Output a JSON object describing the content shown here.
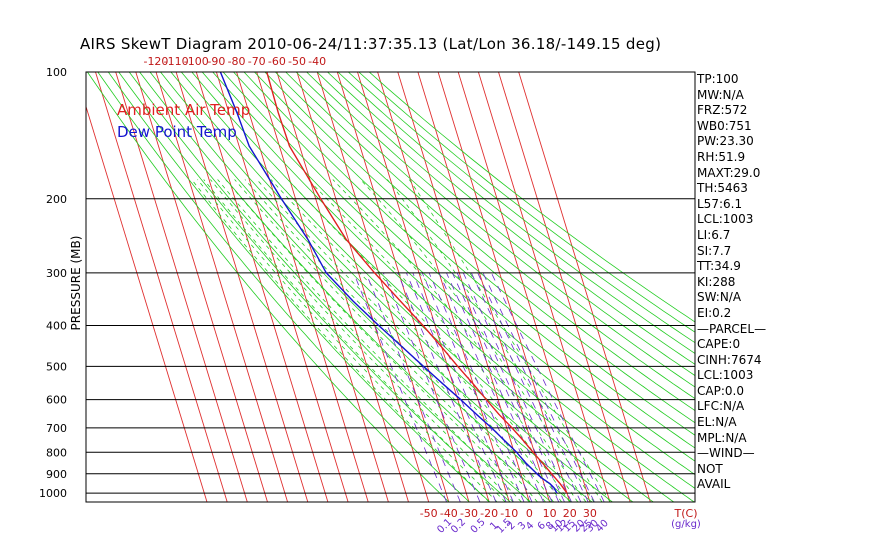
{
  "title": "AIRS SkewT Diagram 2010-06-24/11:37:35.13 (Lat/Lon 36.18/-149.15 deg)",
  "colors": {
    "air_temp": "#e02020",
    "dew_point": "#1414d0",
    "isotherm": "#e03030",
    "dry_adiabat": "#22cc22",
    "moist_adiabat": "#22cc22",
    "mixing_ratio": "#6a2acc",
    "isobar": "#000000"
  },
  "chart_data": {
    "type": "line",
    "title": "AIRS SkewT Diagram 2010-06-24/11:37:35.13 (Lat/Lon 36.18/-149.15 deg)",
    "ylabel": "PRESSURE (MB)",
    "xlabel": "T(C)",
    "y_scale": "log",
    "y_range_mb": [
      1050,
      100
    ],
    "pressure_ticks": [
      "100",
      "200",
      "300",
      "400",
      "500",
      "600",
      "700",
      "800",
      "900",
      "1000"
    ],
    "bottom_temp_ticks": [
      "-50",
      "-40",
      "-30",
      "-20",
      "-10",
      "0",
      "10",
      "20",
      "30"
    ],
    "bottom_axis_unit": "T(C)",
    "top_temp_ticks": [
      "-120",
      "-110",
      "-100",
      "-90",
      "-80",
      "-70",
      "-60",
      "-50",
      "-40"
    ],
    "mixing_ratio_labels": [
      "0.1",
      "0.2",
      "0.5",
      "1",
      "1.5",
      "2",
      "3",
      "4",
      "6",
      "8",
      "10",
      "12",
      "15",
      "20",
      "25",
      "30",
      "40"
    ],
    "mixing_ratio_unit": "(g/kg)",
    "legend": [
      "Ambient Air Temp",
      "Dew Point Temp"
    ],
    "legend_placement": "top-left",
    "series": [
      {
        "name": "Ambient Air Temp",
        "points": [
          {
            "p": 1000,
            "t": 20.0
          },
          {
            "p": 950,
            "t": 18.0
          },
          {
            "p": 900,
            "t": 15.3
          },
          {
            "p": 850,
            "t": 12.5
          },
          {
            "p": 800,
            "t": 9.4
          },
          {
            "p": 750,
            "t": 6.3
          },
          {
            "p": 700,
            "t": 2.6
          },
          {
            "p": 650,
            "t": -1.8
          },
          {
            "p": 600,
            "t": -5.8
          },
          {
            "p": 550,
            "t": -10.0
          },
          {
            "p": 500,
            "t": -15.0
          },
          {
            "p": 450,
            "t": -20.0
          },
          {
            "p": 400,
            "t": -26.0
          },
          {
            "p": 350,
            "t": -33.5
          },
          {
            "p": 300,
            "t": -42.0
          },
          {
            "p": 250,
            "t": -51.0
          },
          {
            "p": 200,
            "t": -57.5
          },
          {
            "p": 175,
            "t": -61.0
          },
          {
            "p": 150,
            "t": -65.0
          },
          {
            "p": 125,
            "t": -65.5
          },
          {
            "p": 100,
            "t": -65.0
          }
        ]
      },
      {
        "name": "Dew Point Temp",
        "points": [
          {
            "p": 1000,
            "t": 15.0
          },
          {
            "p": 970,
            "t": 14.3
          },
          {
            "p": 950,
            "t": 13.0
          },
          {
            "p": 920,
            "t": 9.6
          },
          {
            "p": 900,
            "t": 8.0
          },
          {
            "p": 850,
            "t": 4.3
          },
          {
            "p": 800,
            "t": 1.2
          },
          {
            "p": 750,
            "t": -3.0
          },
          {
            "p": 700,
            "t": -7.5
          },
          {
            "p": 650,
            "t": -13.0
          },
          {
            "p": 600,
            "t": -18.5
          },
          {
            "p": 550,
            "t": -25.0
          },
          {
            "p": 500,
            "t": -32.0
          },
          {
            "p": 450,
            "t": -39.5
          },
          {
            "p": 400,
            "t": -48.0
          },
          {
            "p": 350,
            "t": -57.0
          },
          {
            "p": 300,
            "t": -66.0
          },
          {
            "p": 250,
            "t": -70.0
          },
          {
            "p": 200,
            "t": -77.0
          },
          {
            "p": 150,
            "t": -85.0
          },
          {
            "p": 125,
            "t": -86.0
          },
          {
            "p": 100,
            "t": -88.0
          }
        ]
      }
    ]
  },
  "stats": [
    "TP:100",
    "MW:N/A",
    "FRZ:572",
    "WB0:751",
    "PW:23.30",
    "RH:51.9",
    "MAXT:29.0",
    "TH:5463",
    "L57:6.1",
    "LCL:1003",
    "LI:6.7",
    "SI:7.7",
    "TT:34.9",
    "KI:288",
    "SW:N/A",
    "EI:0.2",
    "—PARCEL—",
    "CAPE:0",
    "CINH:7674",
    "LCL:1003",
    "CAP:0.0",
    "LFC:N/A",
    "EL:N/A",
    "MPL:N/A",
    "—WIND—",
    "NOT",
    "AVAIL"
  ]
}
